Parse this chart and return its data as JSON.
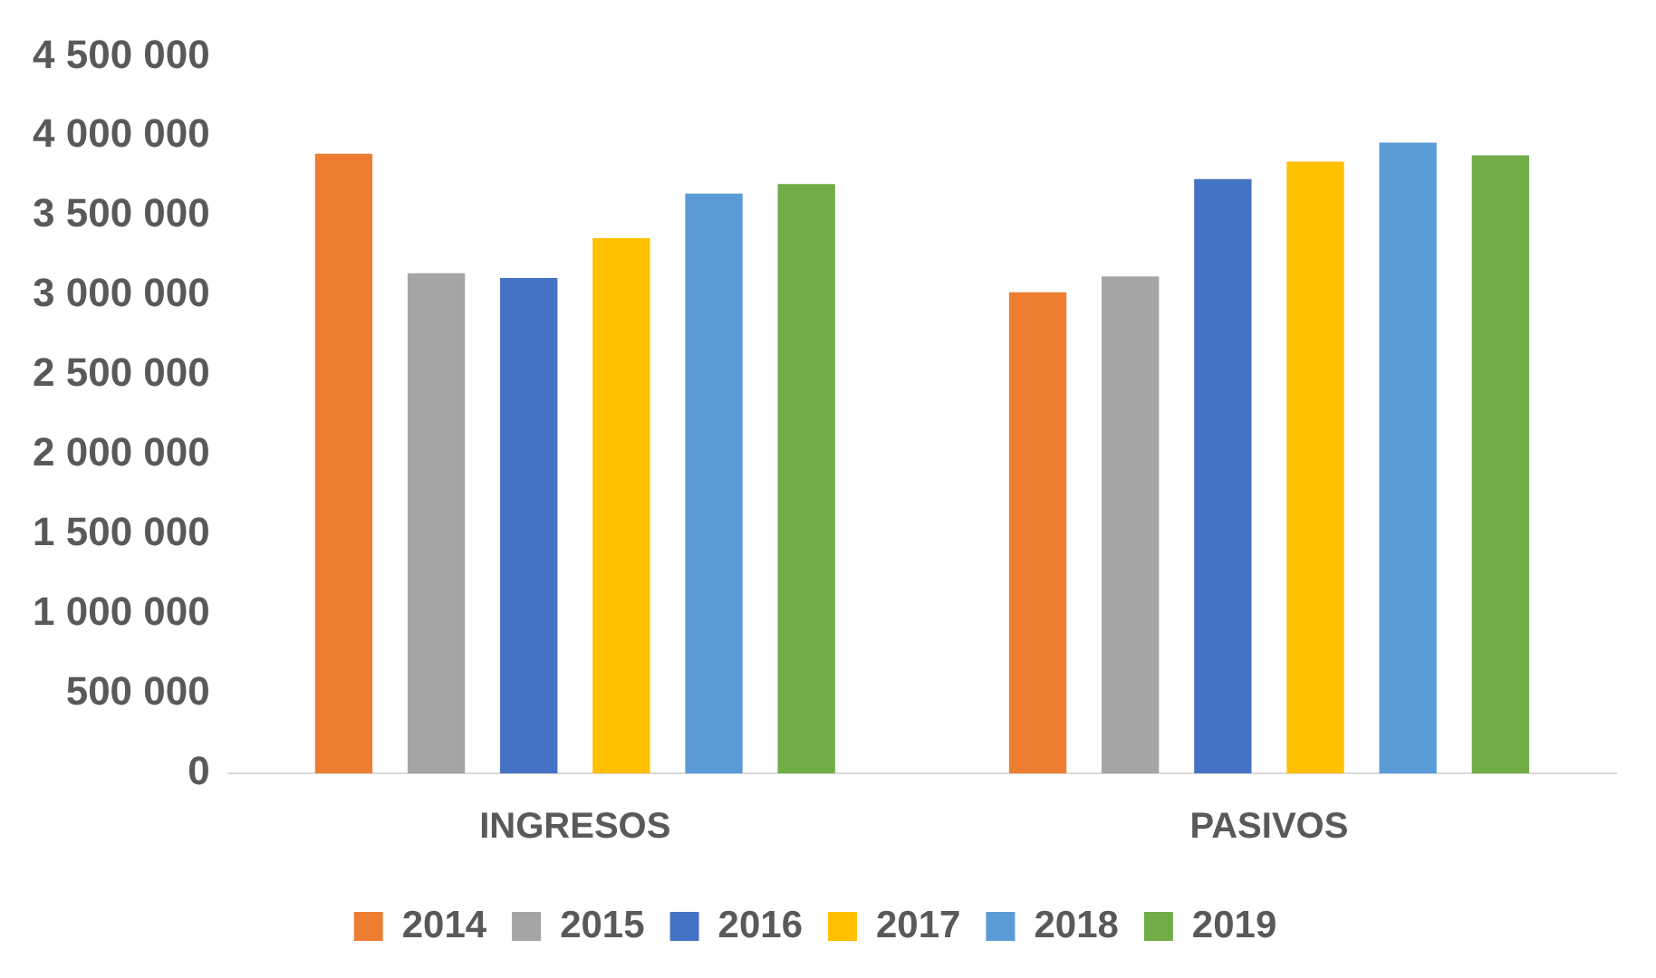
{
  "chart_data": {
    "type": "bar",
    "categories": [
      "INGRESOS",
      "PASIVOS"
    ],
    "series": [
      {
        "name": "2014",
        "color": "#ed7d31",
        "values": [
          3890000,
          3020000
        ]
      },
      {
        "name": "2015",
        "color": "#a5a5a5",
        "values": [
          3140000,
          3120000
        ]
      },
      {
        "name": "2016",
        "color": "#4472c4",
        "values": [
          3110000,
          3730000
        ]
      },
      {
        "name": "2017",
        "color": "#ffc000",
        "values": [
          3360000,
          3840000
        ]
      },
      {
        "name": "2018",
        "color": "#5b9bd5",
        "values": [
          3640000,
          3960000
        ]
      },
      {
        "name": "2019",
        "color": "#70ad47",
        "values": [
          3700000,
          3880000
        ]
      }
    ],
    "ylim": [
      0,
      4500000
    ],
    "yticks": [
      {
        "value": 0,
        "label": "0"
      },
      {
        "value": 500000,
        "label": "500 000"
      },
      {
        "value": 1000000,
        "label": "1 000 000"
      },
      {
        "value": 1500000,
        "label": "1 500 000"
      },
      {
        "value": 2000000,
        "label": "2 000 000"
      },
      {
        "value": 2500000,
        "label": "2 500 000"
      },
      {
        "value": 3000000,
        "label": "3 000 000"
      },
      {
        "value": 3500000,
        "label": "3 500 000"
      },
      {
        "value": 4000000,
        "label": "4 000 000"
      },
      {
        "value": 4500000,
        "label": "4 500 000"
      }
    ],
    "grid": false,
    "legend": "bottom"
  }
}
